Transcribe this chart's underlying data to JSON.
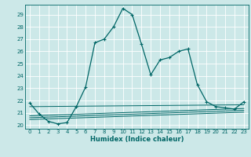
{
  "xlabel": "Humidex (Indice chaleur)",
  "bg_color": "#cce8e8",
  "grid_color": "#ffffff",
  "line_color": "#006666",
  "ylim": [
    19.7,
    29.8
  ],
  "xlim": [
    -0.5,
    23.5
  ],
  "yticks": [
    20,
    21,
    22,
    23,
    24,
    25,
    26,
    27,
    28,
    29
  ],
  "xticks": [
    0,
    1,
    2,
    3,
    4,
    5,
    6,
    7,
    8,
    9,
    10,
    11,
    12,
    13,
    14,
    15,
    16,
    17,
    18,
    19,
    20,
    21,
    22,
    23
  ],
  "main_series": [
    [
      0,
      21.8
    ],
    [
      1,
      20.9
    ],
    [
      2,
      20.3
    ],
    [
      3,
      20.1
    ],
    [
      4,
      20.2
    ],
    [
      5,
      21.5
    ],
    [
      6,
      23.1
    ],
    [
      7,
      26.7
    ],
    [
      8,
      27.0
    ],
    [
      9,
      28.0
    ],
    [
      10,
      29.5
    ],
    [
      11,
      29.0
    ],
    [
      12,
      26.6
    ],
    [
      13,
      24.1
    ],
    [
      14,
      25.3
    ],
    [
      15,
      25.5
    ],
    [
      16,
      26.0
    ],
    [
      17,
      26.2
    ],
    [
      18,
      23.3
    ],
    [
      19,
      21.9
    ],
    [
      20,
      21.5
    ],
    [
      21,
      21.4
    ],
    [
      22,
      21.3
    ],
    [
      23,
      21.9
    ]
  ],
  "flat_lines": [
    [
      0,
      21.5,
      23,
      21.65
    ],
    [
      0,
      20.75,
      23,
      21.35
    ],
    [
      0,
      20.6,
      23,
      21.2
    ],
    [
      0,
      20.45,
      23,
      21.05
    ]
  ]
}
